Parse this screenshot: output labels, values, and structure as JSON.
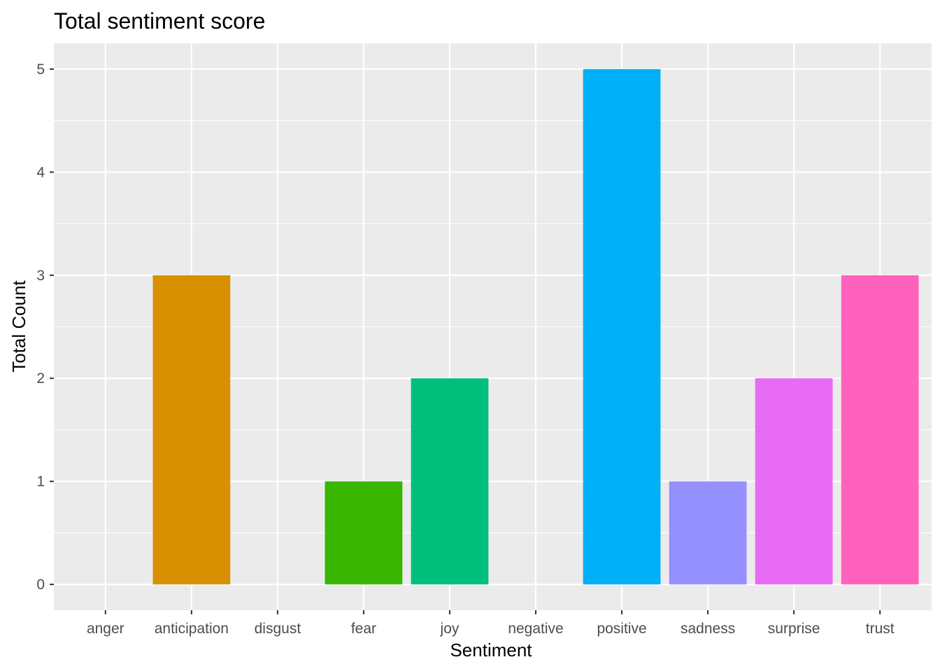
{
  "chart_data": {
    "type": "bar",
    "title": "Total sentiment score",
    "xlabel": "Sentiment",
    "ylabel": "Total Count",
    "categories": [
      "anger",
      "anticipation",
      "disgust",
      "fear",
      "joy",
      "negative",
      "positive",
      "sadness",
      "surprise",
      "trust"
    ],
    "values": [
      0,
      3,
      0,
      1,
      2,
      0,
      5,
      1,
      2,
      3
    ],
    "colors": [
      "#F8766D",
      "#D89000",
      "#A3A500",
      "#39B600",
      "#00BF7D",
      "#00BFC4",
      "#00B0F6",
      "#9590FF",
      "#E76BF3",
      "#FF62BC"
    ],
    "ylim": [
      -0.25,
      5.25
    ],
    "yticks": [
      0,
      1,
      2,
      3,
      4,
      5
    ],
    "grid": true,
    "legend": "none",
    "panel_background": "#EBEBEB",
    "grid_color": "#FFFFFF"
  }
}
